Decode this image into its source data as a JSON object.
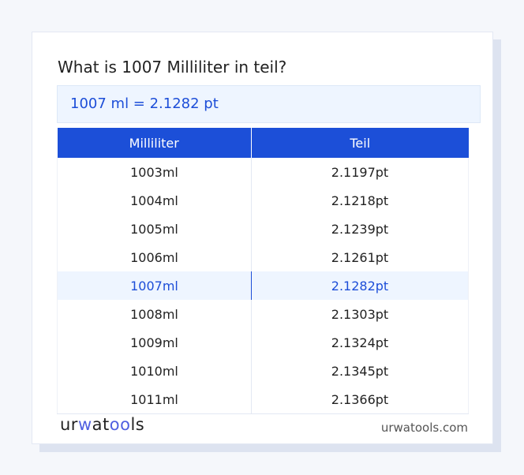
{
  "title": "What is 1007 Milliliter in teil?",
  "result": "1007 ml = 2.1282 pt",
  "table": {
    "headers": [
      "Milliliter",
      "Teil"
    ],
    "rows": [
      [
        "1003ml",
        "2.1197pt"
      ],
      [
        "1004ml",
        "2.1218pt"
      ],
      [
        "1005ml",
        "2.1239pt"
      ],
      [
        "1006ml",
        "2.1261pt"
      ],
      [
        "1007ml",
        "2.1282pt"
      ],
      [
        "1008ml",
        "2.1303pt"
      ],
      [
        "1009ml",
        "2.1324pt"
      ],
      [
        "1010ml",
        "2.1345pt"
      ],
      [
        "1011ml",
        "2.1366pt"
      ]
    ],
    "highlighted_row": 4
  },
  "footer": {
    "logo": "urwatools",
    "site": "urwatools.com"
  },
  "colors": {
    "accent": "#1c4fd8",
    "highlight_bg": "#eef5ff"
  }
}
